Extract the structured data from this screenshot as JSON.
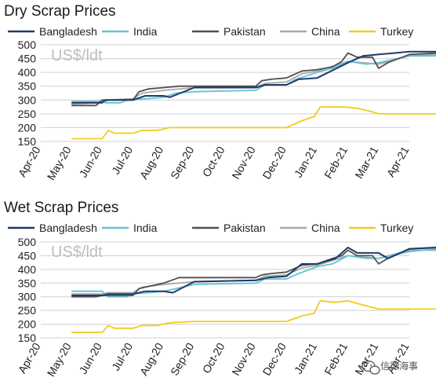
{
  "colors": {
    "Bangladesh": "#1f3a68",
    "India": "#62c3d4",
    "Pakistan": "#505050",
    "China": "#a8a8a8",
    "Turkey": "#f2cc1c",
    "grid": "#d0d0d0"
  },
  "watermark": {
    "icon": "wechat-icon",
    "text": "信德海事"
  },
  "chart_data": [
    {
      "type": "line",
      "title": "Dry Scrap Prices",
      "unit_label": "US$/ldt",
      "legend_position": "top",
      "grid": true,
      "ylim": [
        150,
        500
      ],
      "yticks": [
        150,
        200,
        250,
        300,
        350,
        400,
        450,
        500
      ],
      "x_tick_labels": [
        "Apr-20",
        "May-20",
        "Jun-20",
        "Jul-20",
        "Aug-20",
        "Sep-20",
        "Oct-20",
        "Nov-20",
        "Dec-20",
        "Jan-21",
        "Feb-21",
        "Mar-21",
        "Apr-21"
      ],
      "x_axis_note": "x values are months elapsed since Apr-20",
      "series": [
        {
          "name": "Bangladesh",
          "points": [
            [
              1,
              290
            ],
            [
              2,
              290
            ],
            [
              2.1,
              300
            ],
            [
              3,
              300
            ],
            [
              3.4,
              315
            ],
            [
              4,
              315
            ],
            [
              4.2,
              310
            ],
            [
              5,
              345
            ],
            [
              7,
              345
            ],
            [
              7.3,
              355
            ],
            [
              8,
              355
            ],
            [
              8.4,
              375
            ],
            [
              9,
              380
            ],
            [
              10,
              435
            ],
            [
              10.5,
              460
            ],
            [
              11,
              465
            ],
            [
              12,
              475
            ],
            [
              12.9,
              475
            ]
          ]
        },
        {
          "name": "India",
          "points": [
            [
              1,
              295
            ],
            [
              2,
              295
            ],
            [
              2.1,
              290
            ],
            [
              2.6,
              290
            ],
            [
              2.8,
              300
            ],
            [
              3.5,
              305
            ],
            [
              4,
              310
            ],
            [
              4.4,
              325
            ],
            [
              5,
              330
            ],
            [
              7,
              335
            ],
            [
              7.3,
              355
            ],
            [
              8,
              355
            ],
            [
              8.3,
              375
            ],
            [
              9,
              400
            ],
            [
              9.5,
              415
            ],
            [
              10,
              440
            ],
            [
              10.6,
              430
            ],
            [
              11,
              435
            ],
            [
              12,
              460
            ],
            [
              12.9,
              460
            ]
          ]
        },
        {
          "name": "Pakistan",
          "points": [
            [
              1,
              280
            ],
            [
              1.8,
              280
            ],
            [
              2,
              300
            ],
            [
              3,
              300
            ],
            [
              3.2,
              330
            ],
            [
              3.5,
              340
            ],
            [
              4,
              345
            ],
            [
              4.5,
              350
            ],
            [
              7,
              350
            ],
            [
              7.2,
              370
            ],
            [
              7.5,
              375
            ],
            [
              8,
              380
            ],
            [
              8.5,
              405
            ],
            [
              9,
              410
            ],
            [
              9.5,
              420
            ],
            [
              9.8,
              440
            ],
            [
              10,
              470
            ],
            [
              10.3,
              455
            ],
            [
              10.8,
              455
            ],
            [
              11,
              415
            ],
            [
              11.3,
              435
            ],
            [
              12,
              465
            ],
            [
              12.9,
              470
            ]
          ]
        },
        {
          "name": "China",
          "points": [
            [
              1,
              285
            ],
            [
              2,
              290
            ],
            [
              2.2,
              300
            ],
            [
              3,
              305
            ],
            [
              3.3,
              325
            ],
            [
              4,
              335
            ],
            [
              5,
              345
            ],
            [
              7,
              345
            ],
            [
              7.3,
              360
            ],
            [
              8,
              365
            ],
            [
              8.5,
              395
            ],
            [
              9,
              405
            ],
            [
              10,
              440
            ],
            [
              11,
              430
            ],
            [
              12,
              460
            ],
            [
              12.9,
              465
            ]
          ]
        },
        {
          "name": "Turkey",
          "points": [
            [
              1,
              160
            ],
            [
              2,
              160
            ],
            [
              2.2,
              190
            ],
            [
              2.4,
              180
            ],
            [
              3,
              180
            ],
            [
              3.3,
              190
            ],
            [
              3.8,
              190
            ],
            [
              4.2,
              200
            ],
            [
              5,
              200
            ],
            [
              8,
              200
            ],
            [
              8.5,
              225
            ],
            [
              8.9,
              240
            ],
            [
              9.1,
              275
            ],
            [
              9.9,
              275
            ],
            [
              10.3,
              270
            ],
            [
              10.7,
              260
            ],
            [
              11,
              250
            ],
            [
              12.9,
              250
            ]
          ]
        }
      ]
    },
    {
      "type": "line",
      "title": "Wet Scrap Prices",
      "unit_label": "US$/ldt",
      "legend_position": "top",
      "grid": true,
      "ylim": [
        150,
        500
      ],
      "yticks": [
        150,
        200,
        250,
        300,
        350,
        400,
        450,
        500
      ],
      "x_tick_labels": [
        "Apr-20",
        "May-20",
        "Jun-20",
        "Jul-20",
        "Aug-20",
        "Sep-20",
        "Oct-20",
        "Nov-20",
        "Dec-20",
        "Jan-21",
        "Feb-21",
        "Mar-21",
        "Apr-21"
      ],
      "x_axis_note": "x values are months elapsed since Apr-20",
      "series": [
        {
          "name": "Bangladesh",
          "points": [
            [
              1,
              305
            ],
            [
              2,
              305
            ],
            [
              2.2,
              310
            ],
            [
              3,
              310
            ],
            [
              3.4,
              320
            ],
            [
              4,
              320
            ],
            [
              4.3,
              315
            ],
            [
              5,
              355
            ],
            [
              7,
              360
            ],
            [
              7.4,
              370
            ],
            [
              8,
              375
            ],
            [
              8.5,
              420
            ],
            [
              9,
              420
            ],
            [
              9.6,
              440
            ],
            [
              10,
              480
            ],
            [
              10.3,
              460
            ],
            [
              11,
              460
            ],
            [
              11.3,
              440
            ],
            [
              12,
              475
            ],
            [
              12.9,
              480
            ]
          ]
        },
        {
          "name": "India",
          "points": [
            [
              1,
              320
            ],
            [
              2,
              320
            ],
            [
              2.2,
              300
            ],
            [
              2.8,
              300
            ],
            [
              3,
              310
            ],
            [
              3.5,
              315
            ],
            [
              4,
              320
            ],
            [
              4.4,
              330
            ],
            [
              5,
              345
            ],
            [
              7,
              350
            ],
            [
              7.3,
              365
            ],
            [
              8,
              365
            ],
            [
              8.4,
              385
            ],
            [
              9,
              410
            ],
            [
              9.5,
              420
            ],
            [
              10,
              450
            ],
            [
              10.6,
              440
            ],
            [
              11,
              440
            ],
            [
              12,
              465
            ],
            [
              12.9,
              475
            ]
          ]
        },
        {
          "name": "Pakistan",
          "points": [
            [
              1,
              300
            ],
            [
              1.8,
              300
            ],
            [
              2,
              305
            ],
            [
              3,
              305
            ],
            [
              3.2,
              330
            ],
            [
              3.6,
              340
            ],
            [
              4,
              350
            ],
            [
              4.5,
              370
            ],
            [
              7,
              370
            ],
            [
              7.2,
              380
            ],
            [
              7.5,
              385
            ],
            [
              8,
              390
            ],
            [
              8.5,
              415
            ],
            [
              9,
              420
            ],
            [
              9.5,
              440
            ],
            [
              9.8,
              450
            ],
            [
              10,
              470
            ],
            [
              10.3,
              450
            ],
            [
              10.8,
              450
            ],
            [
              11,
              420
            ],
            [
              11.3,
              440
            ],
            [
              12,
              475
            ],
            [
              12.9,
              480
            ]
          ]
        },
        {
          "name": "China",
          "points": [
            [
              1,
              310
            ],
            [
              2,
              310
            ],
            [
              2.2,
              315
            ],
            [
              3,
              315
            ],
            [
              3.3,
              335
            ],
            [
              4,
              345
            ],
            [
              5,
              355
            ],
            [
              7,
              360
            ],
            [
              7.3,
              375
            ],
            [
              8,
              380
            ],
            [
              8.5,
              405
            ],
            [
              9,
              415
            ],
            [
              10,
              450
            ],
            [
              11,
              440
            ],
            [
              12,
              470
            ],
            [
              12.9,
              470
            ]
          ]
        },
        {
          "name": "Turkey",
          "points": [
            [
              1,
              170
            ],
            [
              2,
              170
            ],
            [
              2.2,
              195
            ],
            [
              2.4,
              185
            ],
            [
              3,
              185
            ],
            [
              3.3,
              195
            ],
            [
              3.8,
              195
            ],
            [
              4.2,
              205
            ],
            [
              5,
              210
            ],
            [
              8,
              210
            ],
            [
              8.5,
              230
            ],
            [
              8.9,
              240
            ],
            [
              9.1,
              285
            ],
            [
              9.6,
              280
            ],
            [
              10,
              285
            ],
            [
              10.5,
              270
            ],
            [
              11,
              255
            ],
            [
              12.9,
              255
            ]
          ]
        }
      ]
    }
  ]
}
